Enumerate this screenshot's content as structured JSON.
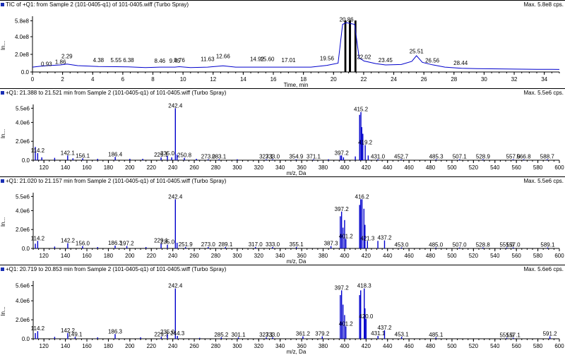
{
  "colors": {
    "trace": "#0000cc",
    "axis": "#000000",
    "icon": "#1a2fb5"
  },
  "chart_data": [
    {
      "type": "line",
      "title": "TIC of +Q1: from Sample 2 (101-0405-q1) of    101-0405.wiff (Turbo Spray)",
      "max_label": "Max. 5.8e8 cps.",
      "xlabel": "Time, min",
      "ylabel": "In...",
      "xlim": [
        0,
        35
      ],
      "ylim": [
        0,
        600000000.0
      ],
      "xticks": [
        0,
        2,
        4,
        6,
        8,
        10,
        12,
        14,
        16,
        18,
        20,
        22,
        24,
        26,
        28,
        30,
        32,
        34
      ],
      "yticks": [
        0,
        200000000.0,
        400000000.0,
        580000000.0
      ],
      "ytick_labels": [
        "0.0",
        "2.0e8",
        "4.0e8",
        "5.8e8"
      ],
      "x": [
        0,
        0.5,
        1.0,
        1.86,
        2.29,
        3.0,
        4.38,
        5.55,
        6.38,
        7.5,
        8.46,
        9.45,
        9.76,
        10.5,
        11.63,
        12.66,
        13.5,
        14.92,
        15.6,
        17.01,
        18.5,
        19.56,
        20.3,
        20.6,
        20.86,
        21.1,
        21.4,
        21.7,
        22.02,
        22.8,
        23.45,
        24.5,
        25.2,
        25.51,
        25.9,
        26.56,
        27.4,
        28.5,
        29.5,
        30.5,
        31.5,
        32.5,
        33.5,
        34.5,
        35
      ],
      "y": [
        55000000.0,
        65000000.0,
        72000000.0,
        80000000.0,
        90000000.0,
        72000000.0,
        62000000.0,
        60000000.0,
        58000000.0,
        50000000.0,
        55000000.0,
        55000000.0,
        60000000.0,
        50000000.0,
        55000000.0,
        70000000.0,
        55000000.0,
        55000000.0,
        55000000.0,
        55000000.0,
        55000000.0,
        75000000.0,
        100000000.0,
        540000000.0,
        560000000.0,
        550000000.0,
        540000000.0,
        160000000.0,
        125000000.0,
        95000000.0,
        80000000.0,
        85000000.0,
        120000000.0,
        185000000.0,
        110000000.0,
        82000000.0,
        55000000.0,
        42000000.0,
        38000000.0,
        36000000.0,
        34000000.0,
        32000000.0,
        30000000.0,
        30000000.0,
        29000000.0
      ],
      "shaded_ranges": [
        [
          20.72,
          20.85
        ],
        [
          21.02,
          21.16
        ],
        [
          21.39,
          21.52
        ]
      ],
      "peak_labels": [
        {
          "x": 0.93,
          "y": 62000000.0,
          "label": "0.93"
        },
        {
          "x": 1.86,
          "y": 85000000.0,
          "label": "1.86"
        },
        {
          "x": 2.29,
          "y": 150000000.0,
          "label": "2.29"
        },
        {
          "x": 4.38,
          "y": 105000000.0,
          "label": "4.38"
        },
        {
          "x": 5.55,
          "y": 105000000.0,
          "label": "5.55"
        },
        {
          "x": 6.38,
          "y": 105000000.0,
          "label": "6.38"
        },
        {
          "x": 8.46,
          "y": 95000000.0,
          "label": "8.46"
        },
        {
          "x": 9.45,
          "y": 95000000.0,
          "label": "9.45"
        },
        {
          "x": 9.76,
          "y": 105000000.0,
          "label": "9.76"
        },
        {
          "x": 11.63,
          "y": 115000000.0,
          "label": "11.63"
        },
        {
          "x": 12.66,
          "y": 150000000.0,
          "label": "12.66"
        },
        {
          "x": 14.92,
          "y": 115000000.0,
          "label": "14.92"
        },
        {
          "x": 15.6,
          "y": 115000000.0,
          "label": "15.60"
        },
        {
          "x": 17.01,
          "y": 105000000.0,
          "label": "17.01"
        },
        {
          "x": 19.56,
          "y": 125000000.0,
          "label": "19.56"
        },
        {
          "x": 20.86,
          "y": 565000000.0,
          "label": "20.86"
        },
        {
          "x": 22.02,
          "y": 140000000.0,
          "label": "22.02"
        },
        {
          "x": 23.45,
          "y": 105000000.0,
          "label": "23.45"
        },
        {
          "x": 25.51,
          "y": 205000000.0,
          "label": "25.51"
        },
        {
          "x": 26.56,
          "y": 100000000.0,
          "label": "26.56"
        },
        {
          "x": 28.44,
          "y": 72000000.0,
          "label": "28.44"
        }
      ]
    },
    {
      "type": "bar",
      "title": "+Q1: 21.388 to 21.521 min from Sample 2 (101-0405-q1) of    101-0405.wiff (Turbo Spray)",
      "max_label": "Max. 5.5e6 cps.",
      "xlabel": "m/z, Da",
      "ylabel": "In...",
      "xlim": [
        110,
        600
      ],
      "ylim": [
        0,
        5600000.0
      ],
      "xticks": [
        120,
        140,
        160,
        180,
        200,
        220,
        240,
        260,
        280,
        300,
        320,
        340,
        360,
        380,
        400,
        420,
        440,
        460,
        480,
        500,
        520,
        540,
        560,
        580,
        600
      ],
      "yticks": [
        0,
        2000000.0,
        4000000.0,
        5500000.0
      ],
      "ytick_labels": [
        "0.0",
        "2.0e6",
        "4.0e6",
        "5.5e6"
      ],
      "peaks": [
        [
          112.0,
          1400000.0,
          ""
        ],
        [
          114.2,
          750000.0,
          "114.2"
        ],
        [
          118.0,
          300000.0,
          ""
        ],
        [
          130.0,
          250000.0,
          ""
        ],
        [
          142.1,
          500000.0,
          "142.1"
        ],
        [
          147.0,
          200000.0,
          ""
        ],
        [
          156.1,
          200000.0,
          "156.1"
        ],
        [
          170.0,
          150000.0,
          ""
        ],
        [
          186.4,
          350000.0,
          "186.4"
        ],
        [
          200.0,
          150000.0,
          ""
        ],
        [
          212.0,
          150000.0,
          ""
        ],
        [
          229.1,
          300000.0,
          "229.1"
        ],
        [
          235.0,
          450000.0,
          "235.0"
        ],
        [
          239.0,
          300000.0,
          ""
        ],
        [
          242.4,
          5500000.0,
          "242.4"
        ],
        [
          244.0,
          600000.0,
          ""
        ],
        [
          250.8,
          250000.0,
          "250.8"
        ],
        [
          262.0,
          150000.0,
          ""
        ],
        [
          273.0,
          100000.0,
          "273.0"
        ],
        [
          283.1,
          100000.0,
          "283.1"
        ],
        [
          300.0,
          100000.0,
          ""
        ],
        [
          327.1,
          100000.0,
          "327.1"
        ],
        [
          333.0,
          100000.0,
          "333.0"
        ],
        [
          354.9,
          100000.0,
          "354.9"
        ],
        [
          371.1,
          100000.0,
          "371.1"
        ],
        [
          385.0,
          100000.0,
          ""
        ],
        [
          396.0,
          500000.0,
          ""
        ],
        [
          397.2,
          500000.0,
          "397.2"
        ],
        [
          399.0,
          300000.0,
          ""
        ],
        [
          410.0,
          400000.0,
          ""
        ],
        [
          414.0,
          4800000.0,
          ""
        ],
        [
          415.2,
          5100000.0,
          "415.2"
        ],
        [
          416.0,
          3500000.0,
          ""
        ],
        [
          417.0,
          2800000.0,
          ""
        ],
        [
          419.2,
          1600000.0,
          "419.2"
        ],
        [
          422.0,
          500000.0,
          ""
        ],
        [
          431.0,
          100000.0,
          "431.0"
        ],
        [
          452.7,
          100000.0,
          "452.7"
        ],
        [
          485.3,
          100000.0,
          "485.3"
        ],
        [
          507.1,
          100000.0,
          "507.1"
        ],
        [
          528.9,
          100000.0,
          "528.9"
        ],
        [
          557.0,
          100000.0,
          "557.0"
        ],
        [
          566.8,
          100000.0,
          "566.8"
        ],
        [
          588.7,
          100000.0,
          "588.7"
        ]
      ]
    },
    {
      "type": "bar",
      "title": "+Q1: 21.020 to 21.157 min from Sample 2 (101-0405-q1) of    101-0405.wiff (Turbo Spray)",
      "max_label": "Max. 5.5e6 cps.",
      "xlabel": "m/z, Da",
      "ylabel": "In...",
      "xlim": [
        110,
        600
      ],
      "ylim": [
        0,
        5600000.0
      ],
      "xticks": [
        120,
        140,
        160,
        180,
        200,
        220,
        240,
        260,
        280,
        300,
        320,
        340,
        360,
        380,
        400,
        420,
        440,
        460,
        480,
        500,
        520,
        540,
        560,
        580,
        600
      ],
      "yticks": [
        0,
        2000000.0,
        4000000.0,
        5500000.0
      ],
      "ytick_labels": [
        "0.0",
        "2.0e6",
        "4.0e6",
        "5.5e6"
      ],
      "peaks": [
        [
          112.0,
          500000.0,
          ""
        ],
        [
          114.2,
          800000.0,
          "114.2"
        ],
        [
          130.0,
          200000.0,
          ""
        ],
        [
          142.2,
          550000.0,
          "142.2"
        ],
        [
          156.0,
          250000.0,
          "156.0"
        ],
        [
          170.0,
          150000.0,
          ""
        ],
        [
          186.3,
          300000.0,
          "186.3"
        ],
        [
          197.2,
          250000.0,
          "197.2"
        ],
        [
          215.0,
          150000.0,
          ""
        ],
        [
          229.1,
          550000.0,
          "229.1"
        ],
        [
          235.0,
          400000.0,
          "235.0"
        ],
        [
          242.4,
          5200000.0,
          "242.4"
        ],
        [
          244.0,
          600000.0,
          ""
        ],
        [
          251.9,
          150000.0,
          "251.9"
        ],
        [
          273.0,
          150000.0,
          "273.0"
        ],
        [
          289.1,
          150000.0,
          "289.1"
        ],
        [
          317.0,
          150000.0,
          "317.0"
        ],
        [
          333.0,
          150000.0,
          "333.0"
        ],
        [
          355.1,
          150000.0,
          "355.1"
        ],
        [
          387.3,
          250000.0,
          "387.3"
        ],
        [
          396.0,
          3400000.0,
          ""
        ],
        [
          397.2,
          3900000.0,
          "397.2"
        ],
        [
          398.5,
          2200000.0,
          ""
        ],
        [
          400.0,
          3000000.0,
          ""
        ],
        [
          401.2,
          1000000.0,
          "401.2"
        ],
        [
          414.0,
          4600000.0,
          ""
        ],
        [
          415.0,
          5200000.0,
          ""
        ],
        [
          416.2,
          5200000.0,
          "416.2"
        ],
        [
          418.0,
          4200000.0,
          ""
        ],
        [
          419.0,
          2500000.0,
          ""
        ],
        [
          421.3,
          800000.0,
          "421.3"
        ],
        [
          431.0,
          800000.0,
          ""
        ],
        [
          437.2,
          850000.0,
          "437.2"
        ],
        [
          453.0,
          100000.0,
          "453.0"
        ],
        [
          485.0,
          100000.0,
          "485.0"
        ],
        [
          507.0,
          100000.0,
          "507.0"
        ],
        [
          528.8,
          100000.0,
          "528.8"
        ],
        [
          551.0,
          100000.0,
          "551.0"
        ],
        [
          557.0,
          100000.0,
          "557.0"
        ],
        [
          589.1,
          100000.0,
          "589.1"
        ]
      ]
    },
    {
      "type": "bar",
      "title": "+Q1: 20.719 to 20.853 min from Sample 2 (101-0405-q1) of    101-0405.wiff (Turbo Spray)",
      "max_label": "Max. 5.6e6 cps.",
      "xlabel": "m/z, Da",
      "ylabel": "In...",
      "xlim": [
        110,
        600
      ],
      "ylim": [
        0,
        5800000.0
      ],
      "xticks": [
        120,
        140,
        160,
        180,
        200,
        220,
        240,
        260,
        280,
        300,
        320,
        340,
        360,
        380,
        400,
        420,
        440,
        460,
        480,
        500,
        520,
        540,
        560,
        580,
        600
      ],
      "yticks": [
        0,
        2000000.0,
        4000000.0,
        5600000.0
      ],
      "ytick_labels": [
        "0.0",
        "2.0e6",
        "4.0e6",
        "5.6e6"
      ],
      "peaks": [
        [
          112.0,
          600000.0,
          ""
        ],
        [
          114.2,
          800000.0,
          "114.2"
        ],
        [
          130.0,
          200000.0,
          ""
        ],
        [
          142.2,
          600000.0,
          "142.2"
        ],
        [
          149.1,
          200000.0,
          "149.1"
        ],
        [
          170.0,
          150000.0,
          ""
        ],
        [
          186.3,
          500000.0,
          "186.3"
        ],
        [
          210.0,
          150000.0,
          ""
        ],
        [
          229.3,
          200000.0,
          "229.3"
        ],
        [
          235.0,
          450000.0,
          "235.0"
        ],
        [
          242.4,
          5300000.0,
          "242.4"
        ],
        [
          244.3,
          300000.0,
          "244.3"
        ],
        [
          265.0,
          100000.0,
          ""
        ],
        [
          285.2,
          150000.0,
          "285.2"
        ],
        [
          301.1,
          150000.0,
          "301.1"
        ],
        [
          327.1,
          150000.0,
          "327.1"
        ],
        [
          333.0,
          150000.0,
          "333.0"
        ],
        [
          361.2,
          250000.0,
          "361.2"
        ],
        [
          379.2,
          250000.0,
          "379.2"
        ],
        [
          396.0,
          4600000.0,
          ""
        ],
        [
          397.2,
          5100000.0,
          "397.2"
        ],
        [
          398.5,
          3600000.0,
          ""
        ],
        [
          400.0,
          2500000.0,
          ""
        ],
        [
          401.2,
          1300000.0,
          "401.2"
        ],
        [
          414.0,
          4600000.0,
          ""
        ],
        [
          415.0,
          5100000.0,
          ""
        ],
        [
          418.3,
          5300000.0,
          "418.3"
        ],
        [
          419.0,
          3200000.0,
          ""
        ],
        [
          420.0,
          2100000.0,
          "420.0"
        ],
        [
          431.1,
          300000.0,
          "431.1"
        ],
        [
          437.2,
          900000.0,
          "437.2"
        ],
        [
          453.1,
          200000.0,
          "453.1"
        ],
        [
          485.1,
          150000.0,
          "485.1"
        ],
        [
          551.0,
          100000.0,
          "551.0"
        ],
        [
          557.1,
          100000.0,
          "557.1"
        ],
        [
          591.2,
          250000.0,
          "591.2"
        ]
      ]
    }
  ]
}
